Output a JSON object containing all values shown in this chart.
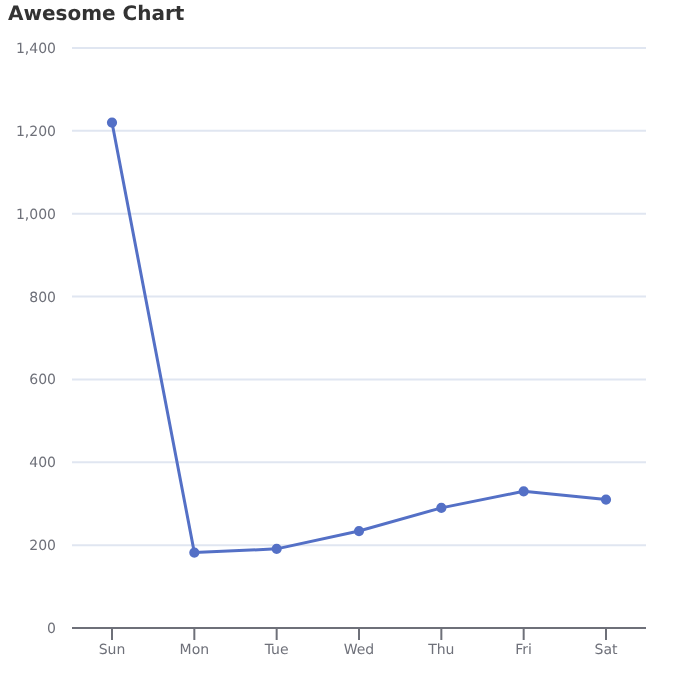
{
  "chart_data": {
    "type": "line",
    "title": "Awesome Chart",
    "categories": [
      "Sun",
      "Mon",
      "Tue",
      "Wed",
      "Thu",
      "Fri",
      "Sat"
    ],
    "series": [
      {
        "color": "#5470c6",
        "values": [
          1220,
          182,
          191,
          234,
          290,
          330,
          310
        ]
      }
    ],
    "ylim": [
      0,
      1400
    ],
    "yticks": [
      {
        "value": 0,
        "label": "0"
      },
      {
        "value": 200,
        "label": "200"
      },
      {
        "value": 400,
        "label": "400"
      },
      {
        "value": 600,
        "label": "600"
      },
      {
        "value": 800,
        "label": "800"
      },
      {
        "value": 1000,
        "label": "1,000"
      },
      {
        "value": 1200,
        "label": "1,200"
      },
      {
        "value": 1400,
        "label": "1,400"
      }
    ],
    "grid": "y",
    "marker": "circle",
    "line_style": "solid"
  }
}
